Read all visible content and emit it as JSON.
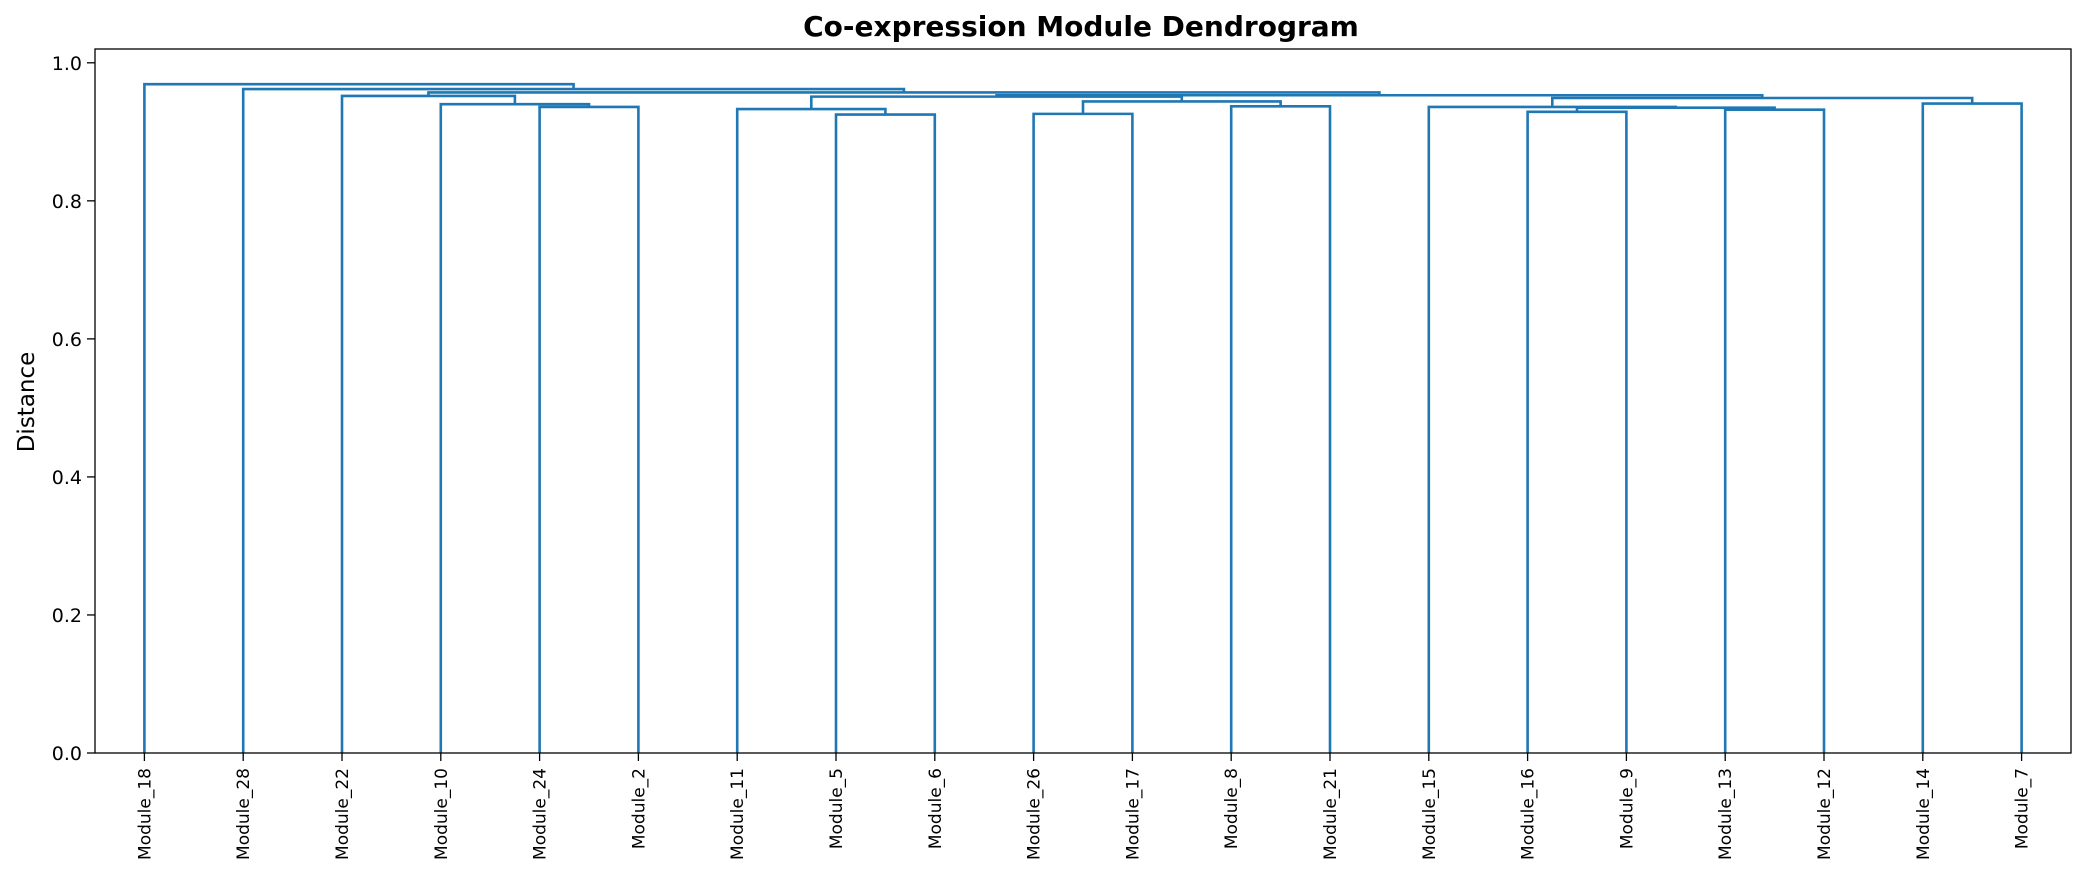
{
  "chart_data": {
    "type": "dendrogram",
    "title": "Co-expression Module Dendrogram",
    "xlabel": "",
    "ylabel": "Distance",
    "ylim": [
      0,
      1.02
    ],
    "yticks": [
      "0.0",
      "0.2",
      "0.4",
      "0.6",
      "0.8",
      "1.0"
    ],
    "grid": false,
    "link_color": "#1f77b4",
    "leaves": [
      "Module_18",
      "Module_28",
      "Module_22",
      "Module_10",
      "Module_24",
      "Module_2",
      "Module_11",
      "Module_5",
      "Module_6",
      "Module_26",
      "Module_17",
      "Module_8",
      "Module_21",
      "Module_15",
      "Module_16",
      "Module_9",
      "Module_13",
      "Module_12",
      "Module_14",
      "Module_7"
    ],
    "merges": [
      {
        "id": "c1",
        "left": "Module_24",
        "right": "Module_2",
        "height": 0.936
      },
      {
        "id": "c2",
        "left": "Module_10",
        "right": "c1",
        "height": 0.94
      },
      {
        "id": "c3",
        "left": "Module_22",
        "right": "c2",
        "height": 0.952
      },
      {
        "id": "c4",
        "left": "Module_5",
        "right": "Module_6",
        "height": 0.925
      },
      {
        "id": "c5",
        "left": "Module_11",
        "right": "c4",
        "height": 0.933
      },
      {
        "id": "c6",
        "left": "Module_26",
        "right": "Module_17",
        "height": 0.926
      },
      {
        "id": "c7",
        "left": "Module_8",
        "right": "Module_21",
        "height": 0.937
      },
      {
        "id": "c8",
        "left": "c6",
        "right": "c7",
        "height": 0.944
      },
      {
        "id": "c9",
        "left": "c5",
        "right": "c8",
        "height": 0.951
      },
      {
        "id": "c10",
        "left": "Module_16",
        "right": "Module_9",
        "height": 0.929
      },
      {
        "id": "c11",
        "left": "Module_13",
        "right": "Module_12",
        "height": 0.932
      },
      {
        "id": "c12",
        "left": "c10",
        "right": "c11",
        "height": 0.935
      },
      {
        "id": "c13",
        "left": "Module_15",
        "right": "c12",
        "height": 0.936
      },
      {
        "id": "c14",
        "left": "Module_14",
        "right": "Module_7",
        "height": 0.941
      },
      {
        "id": "c15",
        "left": "c13",
        "right": "c14",
        "height": 0.949
      },
      {
        "id": "c16",
        "left": "c9",
        "right": "c15",
        "height": 0.953
      },
      {
        "id": "c17",
        "left": "c3",
        "right": "c16",
        "height": 0.957
      },
      {
        "id": "c18",
        "left": "Module_28",
        "right": "c17",
        "height": 0.962
      },
      {
        "id": "c19",
        "left": "Module_18",
        "right": "c18",
        "height": 0.969
      }
    ]
  }
}
